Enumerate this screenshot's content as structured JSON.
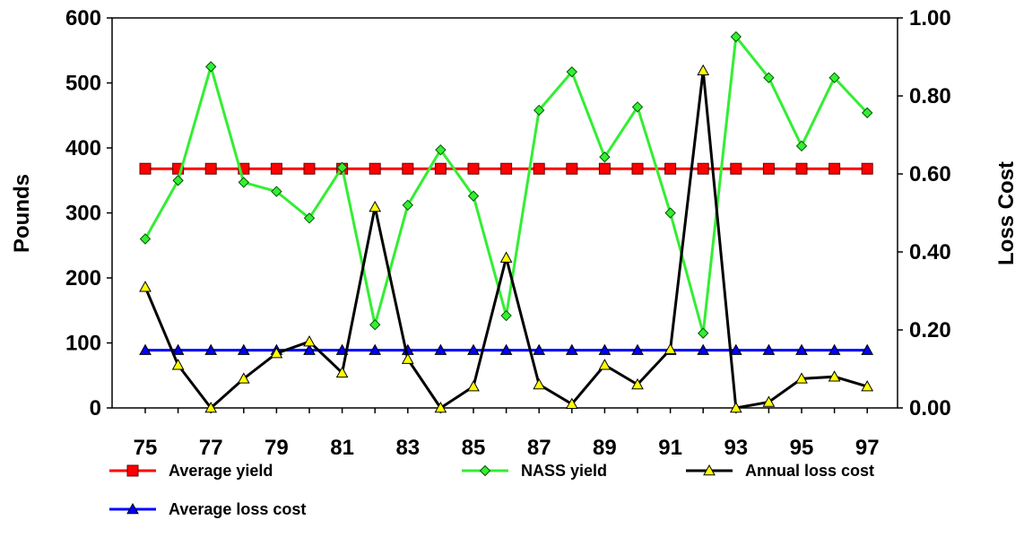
{
  "chart_data": {
    "type": "line",
    "title": "",
    "xlabel": "",
    "ylabel": "Pounds",
    "y2label": "Loss Cost",
    "x": [
      "75",
      "76",
      "77",
      "78",
      "79",
      "80",
      "81",
      "82",
      "83",
      "84",
      "85",
      "86",
      "87",
      "88",
      "89",
      "90",
      "91",
      "92",
      "93",
      "94",
      "95",
      "96",
      "97"
    ],
    "x_tick_labels": [
      "75",
      "77",
      "79",
      "81",
      "83",
      "85",
      "87",
      "89",
      "91",
      "93",
      "95",
      "97"
    ],
    "ylim": [
      0,
      600
    ],
    "y_ticks": [
      "0",
      "100",
      "200",
      "300",
      "400",
      "500",
      "600"
    ],
    "y2lim": [
      0,
      1.0
    ],
    "y2_ticks": [
      "0.00",
      "0.20",
      "0.40",
      "0.60",
      "0.80",
      "1.00"
    ],
    "grid": false,
    "legend_placement": "bottom",
    "series": [
      {
        "name": "Average yield",
        "axis": "left",
        "color": "#ff0000",
        "marker": "square",
        "marker_color": "#ff0000",
        "values": [
          368,
          368,
          368,
          368,
          368,
          368,
          368,
          368,
          368,
          368,
          368,
          368,
          368,
          368,
          368,
          368,
          368,
          368,
          368,
          368,
          368,
          368,
          368
        ]
      },
      {
        "name": "NASS yield",
        "axis": "left",
        "color": "#33ee33",
        "marker": "diamond",
        "marker_color": "#33ee33",
        "values": [
          260,
          350,
          525,
          347,
          333,
          292,
          370,
          128,
          312,
          397,
          326,
          142,
          458,
          517,
          386,
          463,
          300,
          115,
          571,
          508,
          403,
          508,
          454
        ]
      },
      {
        "name": "Annual loss cost",
        "axis": "right",
        "color": "#000000",
        "marker": "triangle",
        "marker_color": "#ffff00",
        "values": [
          0.31,
          0.11,
          0.0,
          0.075,
          0.14,
          0.17,
          0.09,
          0.515,
          0.125,
          0.0,
          0.055,
          0.385,
          0.06,
          0.01,
          0.11,
          0.06,
          0.15,
          0.865,
          0.0,
          0.015,
          0.075,
          0.08,
          0.055
        ]
      },
      {
        "name": "Average loss cost",
        "axis": "right",
        "color": "#0000ff",
        "marker": "triangle",
        "marker_color": "#0000ff",
        "values": [
          0.148,
          0.148,
          0.148,
          0.148,
          0.148,
          0.148,
          0.148,
          0.148,
          0.148,
          0.148,
          0.148,
          0.148,
          0.148,
          0.148,
          0.148,
          0.148,
          0.148,
          0.148,
          0.148,
          0.148,
          0.148,
          0.148,
          0.148
        ]
      }
    ]
  }
}
